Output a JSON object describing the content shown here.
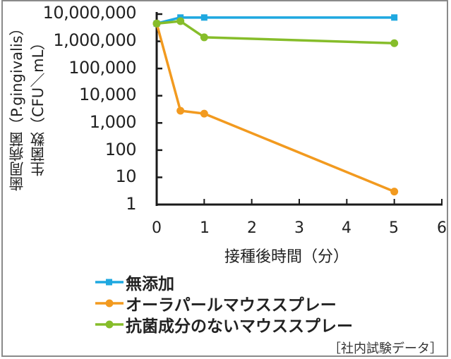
{
  "chart_data": {
    "type": "line",
    "title": "",
    "xlabel": "接種後時間（分）",
    "ylabel_line1": "歯周病菌（P.gingivalis）",
    "ylabel_line2": "生菌数（CFU／mL）",
    "yscale": "log",
    "ylim": [
      1,
      10000000
    ],
    "xlim": [
      0,
      6
    ],
    "grid": false,
    "legend_position": "bottom-left",
    "x_ticks": [
      "0",
      "1",
      "2",
      "3",
      "4",
      "5",
      "6"
    ],
    "y_ticks": [
      "10,000,000",
      "1,000,000",
      "100,000",
      "10,000",
      "1,000",
      "100",
      "10",
      "1"
    ],
    "x": [
      0,
      0.5,
      1,
      5
    ],
    "series": [
      {
        "name": "無添加",
        "color": "#1ea8e0",
        "marker": "square",
        "values": [
          4500000,
          7500000,
          7500000,
          7500000
        ]
      },
      {
        "name": "オーラパールマウススプレー",
        "color": "#f29a1f",
        "marker": "circle",
        "values": [
          4500000,
          2800,
          2200,
          3
        ]
      },
      {
        "name": "抗菌成分のないマウススプレー",
        "color": "#86bd2a",
        "marker": "circle",
        "values": [
          4500000,
          5500000,
          1400000,
          850000
        ]
      }
    ],
    "source_note": "［社内試験データ］"
  }
}
